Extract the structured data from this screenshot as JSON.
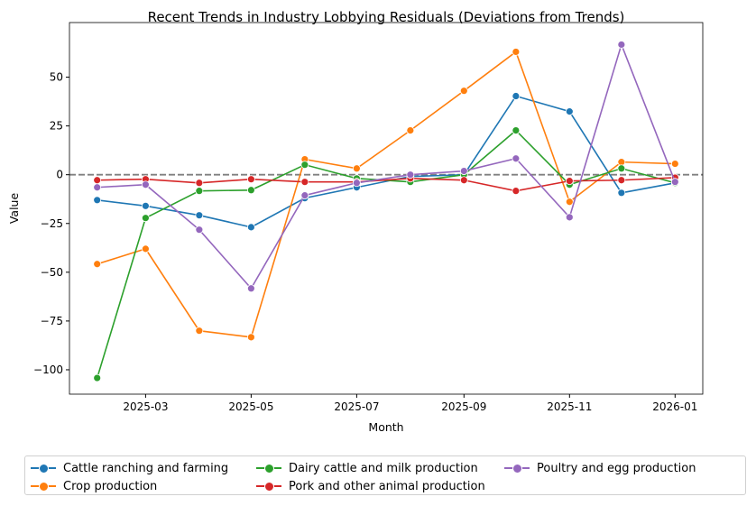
{
  "chart_data": {
    "type": "line",
    "title": "Recent Trends in Industry Lobbying Residuals (Deviations from Trends)",
    "xlabel": "Month",
    "ylabel": "Value",
    "x": [
      "2025-02-01",
      "2025-03-01",
      "2025-04-01",
      "2025-05-01",
      "2025-06-01",
      "2025-07-01",
      "2025-08-01",
      "2025-09-01",
      "2025-10-01",
      "2025-11-01",
      "2025-12-01",
      "2026-01-01"
    ],
    "xticks": [
      "2025-03",
      "2025-05",
      "2025-07",
      "2025-09",
      "2025-11",
      "2026-01"
    ],
    "yticks": [
      50,
      25,
      0,
      -25,
      -50,
      -75,
      -100
    ],
    "ylim": [
      -112.5,
      78
    ],
    "xlim": [
      "2025-01-16",
      "2026-01-17"
    ],
    "reference_line": {
      "y": 0,
      "style": "dashed",
      "color": "#808080"
    },
    "grid": false,
    "legend_position": "bottom",
    "series": [
      {
        "name": "Cattle ranching and farming",
        "color": "#1f77b4",
        "values": [
          -13,
          -16,
          -20.8,
          -26.9,
          -12,
          -6.5,
          -0.9,
          0,
          40.3,
          32.4,
          -9.3,
          -4.2
        ]
      },
      {
        "name": "Crop production",
        "color": "#ff7f0e",
        "values": [
          -45.8,
          -38,
          -80,
          -83.3,
          7.9,
          3.2,
          22.7,
          43,
          63,
          -13.9,
          6.5,
          5.6
        ]
      },
      {
        "name": "Dairy cattle and milk production",
        "color": "#2ca02c",
        "values": [
          -104.2,
          -22.2,
          -8.3,
          -7.9,
          5.1,
          -1.9,
          -3.7,
          0,
          22.7,
          -5.1,
          3.2,
          -4.2
        ]
      },
      {
        "name": "Pork and other animal production",
        "color": "#d62728",
        "values": [
          -2.8,
          -2.3,
          -4.2,
          -2.3,
          -3.7,
          -3.7,
          -1.9,
          -2.8,
          -8.3,
          -3.2,
          -2.8,
          -1.5
        ]
      },
      {
        "name": "Poultry and egg production",
        "color": "#9467bd",
        "values": [
          -6.5,
          -5.1,
          -28.2,
          -58.3,
          -10.6,
          -4.2,
          0,
          1.9,
          8.3,
          -21.8,
          66.7,
          -3.7
        ]
      }
    ]
  }
}
